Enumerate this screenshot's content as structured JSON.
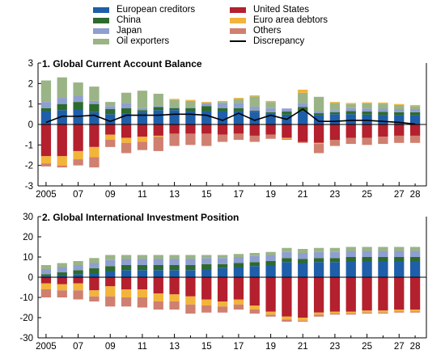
{
  "legend": [
    {
      "label": "European creditors",
      "color": "#1f5ea8"
    },
    {
      "label": "United States",
      "color": "#b4202e"
    },
    {
      "label": "China",
      "color": "#2d6a2e"
    },
    {
      "label": "Euro area debtors",
      "color": "#f2b43a"
    },
    {
      "label": "Japan",
      "color": "#8f9fd0"
    },
    {
      "label": "Others",
      "color": "#d08070"
    },
    {
      "label": "Oil exporters",
      "color": "#9ab486"
    },
    {
      "label": "Discrepancy",
      "color": "#000000"
    }
  ],
  "chart_data": [
    {
      "type": "bar",
      "title": "1. Global Current Account Balance",
      "stacked": true,
      "categories": [
        "2005",
        "2006",
        "2007",
        "2008",
        "2009",
        "2010",
        "2011",
        "2012",
        "2013",
        "2014",
        "2015",
        "2016",
        "2017",
        "2018",
        "2019",
        "2020",
        "2021",
        "2022",
        "2023",
        "2024",
        "2025",
        "2026",
        "2027",
        "2028"
      ],
      "x_tick_labels": [
        "2005",
        "07",
        "09",
        "11",
        "13",
        "15",
        "17",
        "19",
        "21",
        "23",
        "25",
        "27",
        "28"
      ],
      "ylim": [
        -3,
        3
      ],
      "y_ticks": [
        -3,
        -2,
        -1,
        0,
        1,
        2,
        3
      ],
      "series": [
        {
          "name": "European creditors",
          "values": [
            0.65,
            0.7,
            0.75,
            0.6,
            0.5,
            0.55,
            0.6,
            0.7,
            0.7,
            0.65,
            0.65,
            0.65,
            0.65,
            0.62,
            0.55,
            0.48,
            0.65,
            0.45,
            0.5,
            0.5,
            0.48,
            0.47,
            0.45,
            0.45
          ]
        },
        {
          "name": "China",
          "values": [
            0.15,
            0.3,
            0.35,
            0.4,
            0.25,
            0.25,
            0.1,
            0.15,
            0.1,
            0.15,
            0.25,
            0.15,
            0.15,
            0.05,
            0.05,
            0.15,
            0.2,
            0.1,
            0.1,
            0.15,
            0.15,
            0.15,
            0.15,
            0.15
          ]
        },
        {
          "name": "Japan",
          "values": [
            0.3,
            0.3,
            0.3,
            0.15,
            0.15,
            0.25,
            0.1,
            0.05,
            0.05,
            0.05,
            0.15,
            0.25,
            0.25,
            0.2,
            0.2,
            0.15,
            0.2,
            0.1,
            0.1,
            0.15,
            0.15,
            0.15,
            0.15,
            0.15
          ]
        },
        {
          "name": "Oil exporters",
          "values": [
            1.05,
            1.0,
            0.65,
            0.7,
            0.2,
            0.5,
            0.85,
            0.6,
            0.35,
            0.3,
            0.0,
            0.05,
            0.2,
            0.5,
            0.3,
            0.0,
            0.5,
            0.7,
            0.35,
            0.2,
            0.25,
            0.25,
            0.2,
            0.15
          ]
        },
        {
          "name": "United States",
          "values": [
            -1.55,
            -1.55,
            -1.3,
            -1.1,
            -0.5,
            -0.65,
            -0.6,
            -0.55,
            -0.45,
            -0.45,
            -0.45,
            -0.5,
            -0.45,
            -0.55,
            -0.5,
            -0.65,
            -0.85,
            -0.9,
            -0.75,
            -0.65,
            -0.65,
            -0.6,
            -0.55,
            -0.55
          ]
        },
        {
          "name": "Euro area debtors",
          "values": [
            -0.35,
            -0.45,
            -0.4,
            -0.5,
            -0.25,
            -0.25,
            -0.25,
            -0.05,
            0.05,
            0.05,
            0.05,
            0.05,
            0.05,
            0.05,
            0.05,
            -0.05,
            0.15,
            -0.05,
            0.05,
            0.05,
            0.05,
            0.05,
            0.05,
            0.05
          ]
        },
        {
          "name": "Others",
          "values": [
            -0.15,
            -0.1,
            -0.3,
            -0.5,
            -0.35,
            -0.5,
            -0.4,
            -0.7,
            -0.6,
            -0.55,
            -0.6,
            -0.35,
            -0.3,
            -0.3,
            -0.2,
            -0.05,
            -0.05,
            -0.45,
            -0.3,
            -0.3,
            -0.35,
            -0.35,
            -0.35,
            -0.35
          ]
        },
        {
          "name": "Discrepancy",
          "type": "line",
          "values": [
            0.1,
            0.4,
            0.4,
            0.45,
            0.15,
            0.45,
            0.45,
            0.45,
            0.5,
            0.5,
            0.45,
            0.2,
            0.55,
            0.2,
            0.45,
            0.25,
            0.75,
            0.15,
            0.15,
            0.2,
            0.2,
            0.15,
            0.1,
            0.02
          ]
        }
      ]
    },
    {
      "type": "bar",
      "title": "2. Global International Investment Position",
      "stacked": true,
      "categories": [
        "2005",
        "2006",
        "2007",
        "2008",
        "2009",
        "2010",
        "2011",
        "2012",
        "2013",
        "2014",
        "2015",
        "2016",
        "2017",
        "2018",
        "2019",
        "2020",
        "2021",
        "2022",
        "2023",
        "2024",
        "2025",
        "2026",
        "2027",
        "2028"
      ],
      "x_tick_labels": [
        "2005",
        "07",
        "09",
        "11",
        "13",
        "15",
        "17",
        "19",
        "21",
        "23",
        "25",
        "27",
        "28"
      ],
      "ylim": [
        -30,
        30
      ],
      "y_ticks": [
        -30,
        -20,
        -10,
        0,
        10,
        20,
        30
      ],
      "series": [
        {
          "name": "European creditors",
          "values": [
            0.5,
            1.0,
            1.5,
            2.0,
            3.0,
            3.5,
            3.5,
            3.5,
            3.5,
            3.5,
            4.0,
            4.5,
            5.0,
            5.5,
            6.0,
            7.5,
            7.0,
            7.5,
            7.5,
            8.0,
            8.0,
            8.0,
            8.0,
            8.0
          ]
        },
        {
          "name": "China",
          "values": [
            1.0,
            1.5,
            2.0,
            2.5,
            2.5,
            2.5,
            2.5,
            2.5,
            2.5,
            2.5,
            2.5,
            2.0,
            2.0,
            2.0,
            2.0,
            2.0,
            2.0,
            2.0,
            2.0,
            2.0,
            2.0,
            2.0,
            2.0,
            2.0
          ]
        },
        {
          "name": "Japan",
          "values": [
            2.5,
            2.5,
            2.5,
            2.5,
            3.0,
            3.0,
            3.0,
            3.0,
            3.0,
            3.0,
            3.0,
            3.0,
            3.0,
            3.0,
            3.0,
            3.0,
            3.0,
            3.0,
            3.0,
            3.0,
            3.0,
            3.0,
            3.0,
            3.0
          ]
        },
        {
          "name": "Oil exporters",
          "values": [
            2.0,
            2.0,
            2.0,
            2.5,
            2.5,
            2.0,
            2.0,
            2.0,
            2.0,
            2.0,
            1.5,
            1.5,
            1.5,
            1.5,
            1.5,
            2.0,
            2.0,
            2.0,
            2.0,
            2.0,
            2.0,
            2.0,
            2.0,
            2.0
          ]
        },
        {
          "name": "United States",
          "values": [
            -3.0,
            -3.5,
            -3.0,
            -6.5,
            -4.5,
            -6.0,
            -6.0,
            -8.0,
            -8.5,
            -9.5,
            -11.0,
            -12.0,
            -11.0,
            -14.0,
            -17.0,
            -19.5,
            -20.0,
            -17.5,
            -17.0,
            -17.0,
            -16.5,
            -16.5,
            -16.0,
            -16.0
          ]
        },
        {
          "name": "Euro area debtors",
          "values": [
            -3.0,
            -3.0,
            -3.5,
            -3.0,
            -5.0,
            -4.0,
            -4.0,
            -4.0,
            -3.5,
            -4.0,
            -3.0,
            -2.5,
            -2.5,
            -2.0,
            -1.5,
            -1.5,
            -1.5,
            -1.0,
            -1.0,
            -1.0,
            -1.0,
            -1.0,
            -1.0,
            -1.0
          ]
        },
        {
          "name": "Others",
          "values": [
            -4.0,
            -3.5,
            -4.5,
            -2.5,
            -5.0,
            -4.5,
            -5.0,
            -4.0,
            -4.0,
            -4.5,
            -3.5,
            -3.0,
            -2.5,
            -2.0,
            -1.0,
            -1.0,
            -0.5,
            -1.0,
            -0.5,
            -0.5,
            -0.5,
            -0.5,
            -0.5,
            -0.5
          ]
        }
      ]
    }
  ]
}
